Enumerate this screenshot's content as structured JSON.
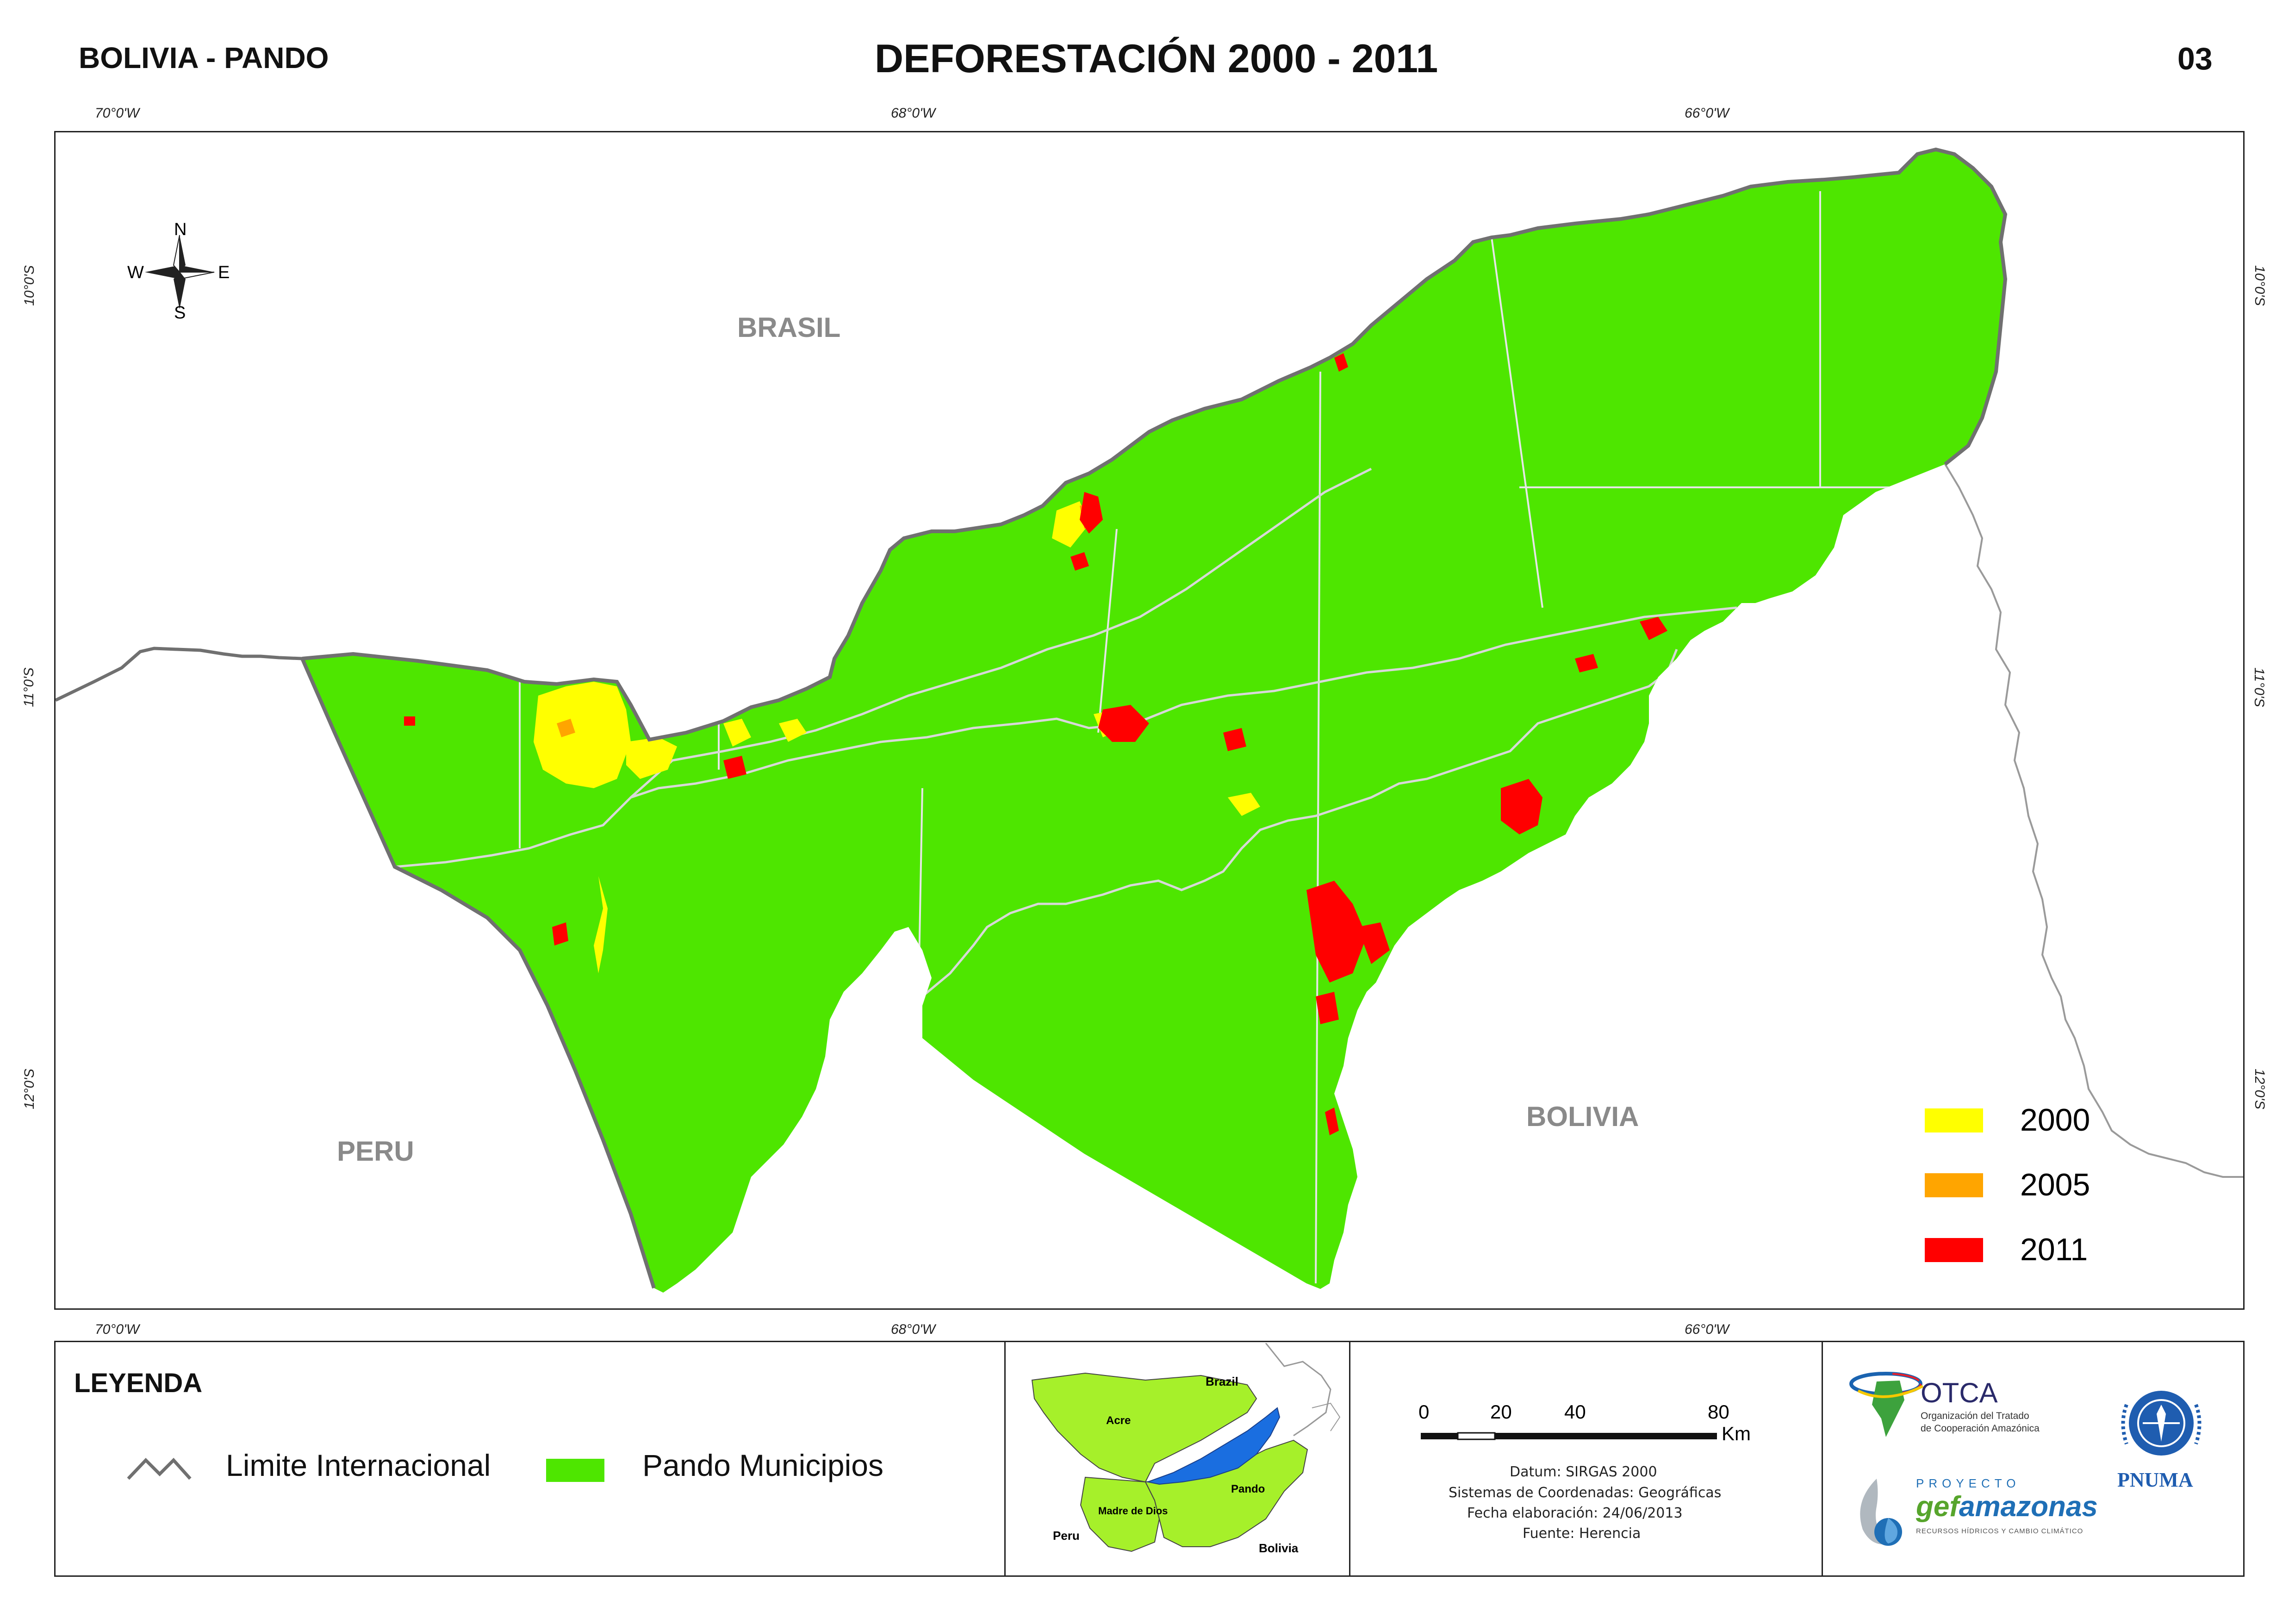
{
  "header": {
    "left": "BOLIVIA - PANDO",
    "title": "DEFORESTACIÓN 2000 - 2011",
    "sheet_number": "03"
  },
  "graticule": {
    "longitudes": [
      "70°0'W",
      "68°0'W",
      "66°0'W"
    ],
    "latitudes": [
      "10°0'S",
      "11°0'S",
      "12°0'S"
    ]
  },
  "map": {
    "labels": {
      "brasil": "BRASIL",
      "peru": "PERU",
      "bolivia": "BOLIVIA"
    },
    "north_arrow": {
      "n": "N",
      "s": "S",
      "e": "E",
      "w": "W"
    },
    "colors": {
      "pando": "#4ee600",
      "y2000": "#ffff00",
      "y2005": "#ffa500",
      "y2011": "#ff0000",
      "border": "#707070",
      "rivers": "#d8d8d8"
    }
  },
  "deforestation_legend": [
    {
      "label": "2000",
      "color": "#ffff00"
    },
    {
      "label": "2005",
      "color": "#ffa500"
    },
    {
      "label": "2011",
      "color": "#ff0000"
    }
  ],
  "legend": {
    "title": "LEYENDA",
    "limit_label": "Limite Internacional",
    "pando_label": "Pando Municipios"
  },
  "inset": {
    "brazil": "Brazil",
    "acre": "Acre",
    "pando": "Pando",
    "madre_de_dios": "Madre de Dios",
    "peru": "Peru",
    "bolivia": "Bolivia"
  },
  "scale_bar": {
    "ticks": [
      "0",
      "20",
      "40",
      "80"
    ],
    "unit": "Km"
  },
  "metadata": {
    "datum": "Datum: SIRGAS 2000",
    "crs": "Sistemas de Coordenadas: Geográficas",
    "date": "Fecha elaboración: 24/06/2013",
    "source": "Fuente: Herencia"
  },
  "logos": {
    "otca_name": "OTCA",
    "otca_line1": "Organización del Tratado",
    "otca_line2": "de Cooperación Amazónica",
    "proyecto": "PROYECTO",
    "gef_a": "gef",
    "gef_b": "amazonas",
    "gef_sub": "RECURSOS HÍDRICOS Y CAMBIO CLIMÁTICO",
    "pnuma": "PNUMA"
  }
}
